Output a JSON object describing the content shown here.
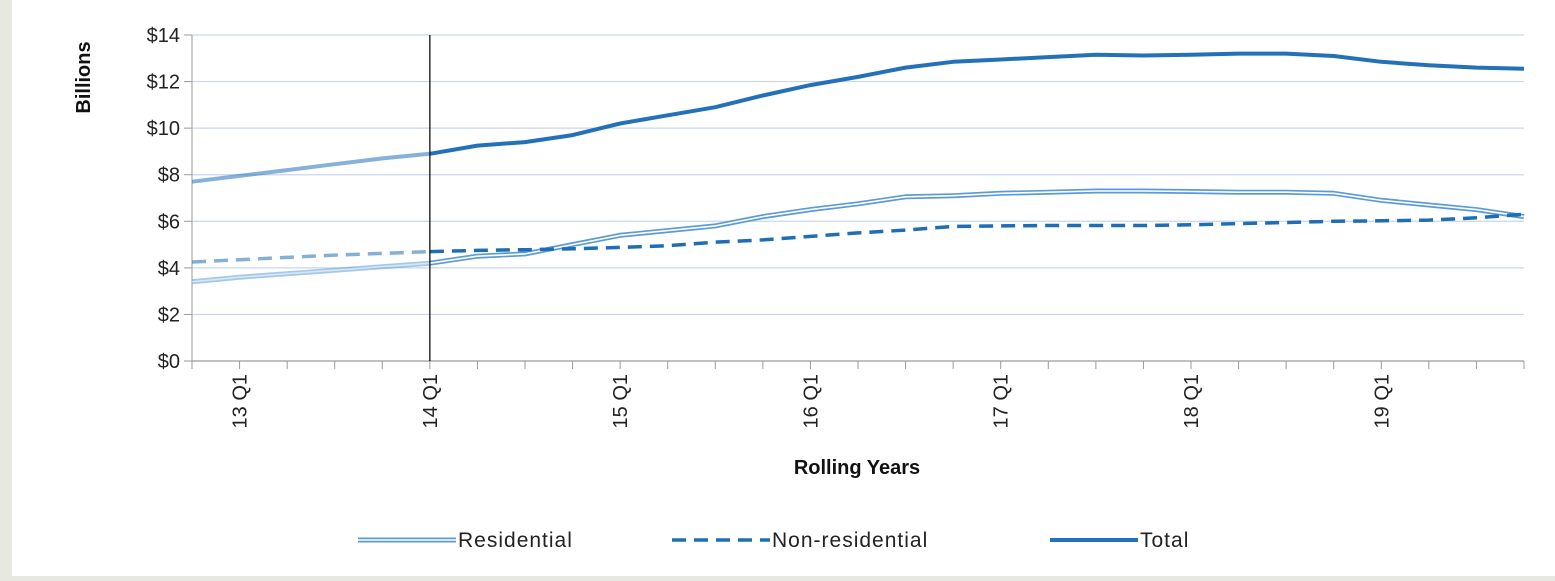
{
  "chart_data": {
    "type": "line",
    "xlabel": "Rolling Years",
    "ylabel": "Billions",
    "y_tick_format": "$",
    "ylim": [
      0,
      14
    ],
    "yticks": [
      0,
      2,
      4,
      6,
      8,
      10,
      12,
      14
    ],
    "x_tick_labels": [
      "13 Q1",
      "14 Q1",
      "15 Q1",
      "16 Q1",
      "17 Q1",
      "18 Q1",
      "19 Q1"
    ],
    "x": [
      "12 Q4",
      "13 Q1",
      "13 Q2",
      "13 Q3",
      "13 Q4",
      "14 Q1",
      "14 Q2",
      "14 Q3",
      "14 Q4",
      "15 Q1",
      "15 Q2",
      "15 Q3",
      "15 Q4",
      "16 Q1",
      "16 Q2",
      "16 Q3",
      "16 Q4",
      "17 Q1",
      "17 Q2",
      "17 Q3",
      "17 Q4",
      "18 Q1",
      "18 Q2",
      "18 Q3",
      "18 Q4",
      "19 Q1",
      "19 Q2",
      "19 Q3",
      "19 Q4"
    ],
    "highlight_from": "14 Q1",
    "reference_line_at": "14 Q1",
    "grid": true,
    "legend_position": "bottom",
    "series": [
      {
        "name": "Residential",
        "style": "double",
        "color": "#5b9bd5",
        "values": [
          3.4,
          3.6,
          3.75,
          3.9,
          4.05,
          4.2,
          4.5,
          4.6,
          5.0,
          5.4,
          5.6,
          5.8,
          6.2,
          6.5,
          6.75,
          7.05,
          7.1,
          7.2,
          7.25,
          7.3,
          7.3,
          7.28,
          7.25,
          7.25,
          7.2,
          6.9,
          6.7,
          6.5,
          6.2
        ]
      },
      {
        "name": "Non-residential",
        "style": "dashed",
        "color": "#1f6db5",
        "values": [
          4.25,
          4.35,
          4.45,
          4.55,
          4.62,
          4.7,
          4.75,
          4.78,
          4.82,
          4.88,
          4.95,
          5.1,
          5.2,
          5.35,
          5.5,
          5.62,
          5.78,
          5.8,
          5.82,
          5.82,
          5.82,
          5.85,
          5.9,
          5.95,
          6.0,
          6.02,
          6.05,
          6.15,
          6.3
        ]
      },
      {
        "name": "Total",
        "style": "solid",
        "color": "#2371b8",
        "values": [
          7.7,
          7.95,
          8.2,
          8.45,
          8.7,
          8.9,
          9.25,
          9.4,
          9.7,
          10.2,
          10.55,
          10.9,
          11.4,
          11.85,
          12.2,
          12.6,
          12.85,
          12.95,
          13.05,
          13.15,
          13.12,
          13.15,
          13.2,
          13.2,
          13.1,
          12.85,
          12.7,
          12.6,
          12.55
        ]
      }
    ]
  }
}
